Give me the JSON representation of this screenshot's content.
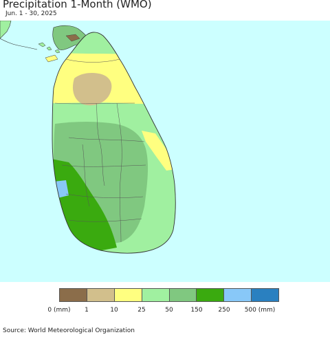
{
  "title": "Precipitation 1-Month (WMO)",
  "subtitle": "Jun. 1 - 30, 2025",
  "source": "Source: World Meteorological Organization",
  "colors": {
    "ocean": "#ccffff",
    "land_outline": "#333333"
  },
  "legend": {
    "colors": [
      "#8b6d4a",
      "#d2bf8c",
      "#ffff80",
      "#a0f0a0",
      "#80c880",
      "#3aaa0f",
      "#88c8f8",
      "#2a80c0"
    ],
    "labels": [
      "0 (mm)",
      "1",
      "10",
      "25",
      "50",
      "150",
      "250",
      "500 (mm)"
    ]
  }
}
